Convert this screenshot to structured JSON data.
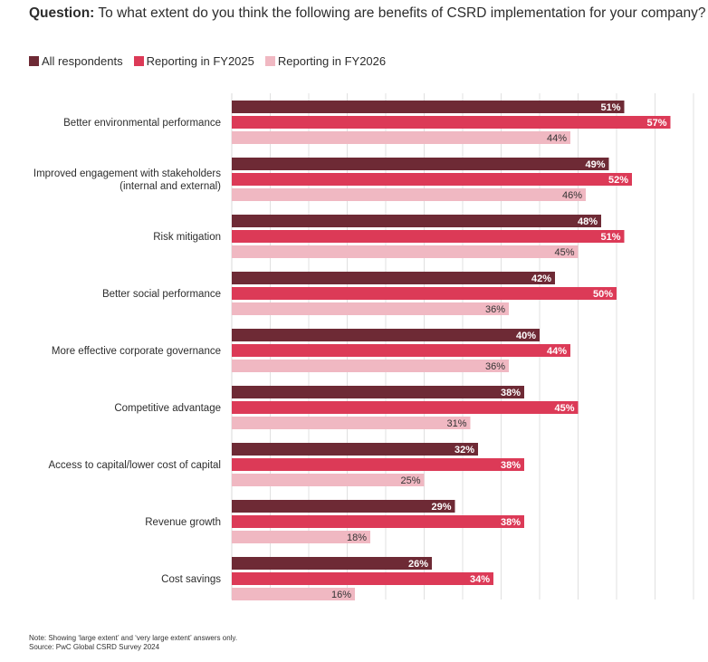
{
  "header": {
    "question_label": "Question:",
    "question_text": "To what extent do you think the following are benefits of CSRD implementation for your company?"
  },
  "colors": {
    "All respondents": "#6e2a35",
    "Reporting in FY2025": "#dc3a57",
    "Reporting in FY2026": "#f0b8c2",
    "grid": "#d9d9d9",
    "label_light": "#ffffff",
    "label_dark": "#333333"
  },
  "legend": [
    {
      "label": "All respondents",
      "color": "#6e2a35"
    },
    {
      "label": "Reporting in FY2025",
      "color": "#dc3a57"
    },
    {
      "label": "Reporting in FY2026",
      "color": "#f0b8c2"
    }
  ],
  "chart_data": {
    "type": "bar",
    "orientation": "horizontal",
    "categories": [
      "Better environmental performance",
      "Improved engagement with stakeholders\n(internal and external)",
      "Risk mitigation",
      "Better social performance",
      "More effective corporate governance",
      "Competitive advantage",
      "Access to capital/lower cost of capital",
      "Revenue growth",
      "Cost savings"
    ],
    "series": [
      {
        "name": "All respondents",
        "values": [
          51,
          49,
          48,
          42,
          40,
          38,
          32,
          29,
          26
        ]
      },
      {
        "name": "Reporting in FY2025",
        "values": [
          57,
          52,
          51,
          50,
          44,
          45,
          38,
          38,
          34
        ]
      },
      {
        "name": "Reporting in FY2026",
        "values": [
          44,
          46,
          45,
          36,
          36,
          31,
          25,
          18,
          16
        ]
      }
    ],
    "value_suffix": "%",
    "xlim": [
      0,
      60
    ],
    "grid": true,
    "legend_position": "top-left"
  },
  "notes": {
    "note": "Note: Showing ‘large extent’ and ‘very large extent’ answers only.",
    "source": "Source: PwC Global CSRD Survey 2024"
  }
}
